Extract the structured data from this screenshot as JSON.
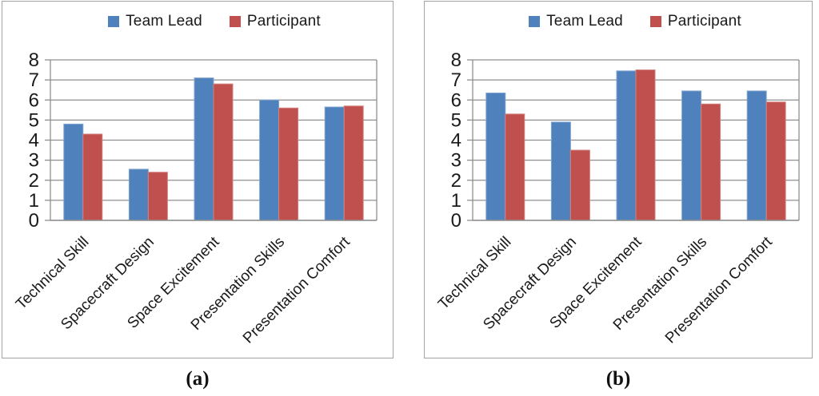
{
  "chart_data": [
    {
      "id": "a",
      "type": "bar",
      "caption": "(a)",
      "categories": [
        "Technical Skill",
        "Spacecraft Design",
        "Space Excitement",
        "Presentation Skills",
        "Presentation Comfort"
      ],
      "series": [
        {
          "name": "Team Lead",
          "color": "#4F81BD",
          "edge_color": "#7FA5D1",
          "values": [
            4.8,
            2.55,
            7.1,
            6.0,
            5.65
          ]
        },
        {
          "name": "Participant",
          "color": "#C0504D",
          "edge_color": "#D28280",
          "values": [
            4.3,
            2.4,
            6.8,
            5.6,
            5.7
          ]
        }
      ],
      "ylim": [
        0,
        8
      ],
      "yticks": [
        "0",
        "1",
        "2",
        "3",
        "4",
        "5",
        "6",
        "7",
        "8"
      ],
      "grid": true,
      "legend_position": "top"
    },
    {
      "id": "b",
      "type": "bar",
      "caption": "(b)",
      "categories": [
        "Technical Skill",
        "Spacecraft Design",
        "Space Excitement",
        "Presentation Skills",
        "Presentation Comfort"
      ],
      "series": [
        {
          "name": "Team Lead",
          "color": "#4F81BD",
          "edge_color": "#7FA5D1",
          "values": [
            6.35,
            4.9,
            7.45,
            6.45,
            6.45
          ]
        },
        {
          "name": "Participant",
          "color": "#C0504D",
          "edge_color": "#D28280",
          "values": [
            5.3,
            3.5,
            7.5,
            5.8,
            5.9
          ]
        }
      ],
      "ylim": [
        0,
        8
      ],
      "yticks": [
        "0",
        "1",
        "2",
        "3",
        "4",
        "5",
        "6",
        "7",
        "8"
      ],
      "grid": true,
      "legend_position": "top"
    }
  ],
  "style_colors": {
    "gridline": "#8f8f8f",
    "plot_border": "#8f8f8f",
    "axis_text": "#1a1a1a"
  }
}
